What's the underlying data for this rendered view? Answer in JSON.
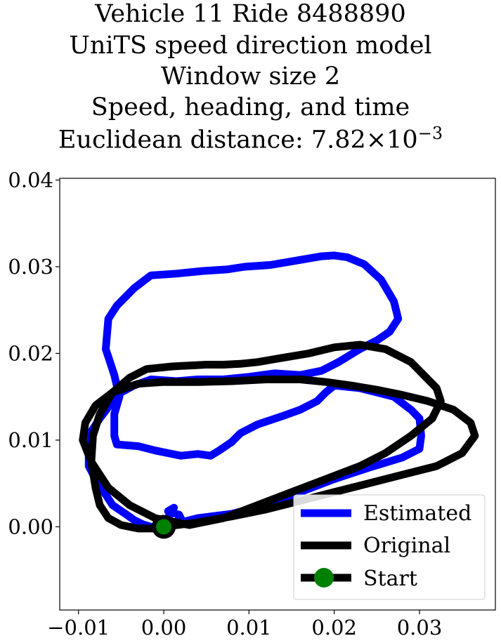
{
  "chart_data": {
    "type": "line",
    "title_lines": [
      "Vehicle 11 Ride 8488890",
      "UniTS speed direction model",
      "Window size 2",
      "Speed, heading, and time"
    ],
    "title_last_prefix": "Euclidean distance: 7.82",
    "title_last_times": "×",
    "title_last_base": "10",
    "title_last_exp": "−3",
    "xlabel": "",
    "ylabel": "",
    "xlim": [
      -0.0122,
      0.0389
    ],
    "ylim": [
      -0.0096,
      0.0402
    ],
    "xticks": [
      -0.01,
      0.0,
      0.01,
      0.02,
      0.03
    ],
    "xtick_labels": [
      "−0.01",
      "0.00",
      "0.01",
      "0.02",
      "0.03"
    ],
    "yticks": [
      0.0,
      0.01,
      0.02,
      0.03,
      0.04
    ],
    "ytick_labels": [
      "0.00",
      "0.01",
      "0.02",
      "0.03",
      "0.04"
    ],
    "grid": false,
    "legend_placement": "lower-right",
    "series": [
      {
        "name": "Estimated",
        "color": "#0000ff",
        "x": [
          0.0,
          0.004,
          0.008,
          0.012,
          0.016,
          0.02,
          0.024,
          0.028,
          0.03,
          0.0302,
          0.03,
          0.029,
          0.027,
          0.023,
          0.02,
          0.019,
          0.018,
          0.016,
          0.014,
          0.011,
          0.009,
          0.008,
          0.0065,
          0.0055,
          0.004,
          0.002,
          0.0005,
          -0.001,
          -0.003,
          -0.0055,
          -0.0058,
          -0.0058,
          -0.0052,
          -0.0058,
          -0.0068,
          -0.0065,
          -0.0055,
          -0.0035,
          -0.0015,
          0.0015,
          0.0045,
          0.0075,
          0.0095,
          0.0125,
          0.0155,
          0.0185,
          0.02,
          0.0215,
          0.0235,
          0.0255,
          0.027,
          0.0275,
          0.0265,
          0.025,
          0.023,
          0.0205,
          0.0185,
          0.016,
          0.013,
          0.01,
          0.007,
          0.004,
          0.0015,
          -0.0015,
          -0.0035,
          -0.005,
          -0.0065,
          -0.0075,
          -0.0085,
          -0.0088,
          -0.0088,
          -0.008,
          -0.007,
          -0.006,
          -0.0045,
          -0.0035,
          -0.0025,
          -0.0015,
          -0.0005,
          0.0005,
          0.0015,
          0.002,
          0.0018,
          0.0005,
          0.0012,
          0.0005,
          0.0
        ],
        "y": [
          0.0,
          0.001,
          0.0015,
          0.0025,
          0.004,
          0.0055,
          0.0068,
          0.008,
          0.009,
          0.0105,
          0.0125,
          0.0135,
          0.015,
          0.016,
          0.0163,
          0.0155,
          0.0145,
          0.0135,
          0.0128,
          0.0118,
          0.0108,
          0.0098,
          0.0088,
          0.0082,
          0.0084,
          0.0082,
          0.0085,
          0.0088,
          0.0093,
          0.0095,
          0.0105,
          0.013,
          0.015,
          0.0175,
          0.0205,
          0.024,
          0.0255,
          0.0275,
          0.029,
          0.0292,
          0.0295,
          0.0297,
          0.03,
          0.0302,
          0.0307,
          0.0312,
          0.0313,
          0.0311,
          0.0303,
          0.0285,
          0.026,
          0.024,
          0.0225,
          0.0215,
          0.0205,
          0.019,
          0.018,
          0.0175,
          0.0177,
          0.0173,
          0.017,
          0.017,
          0.0168,
          0.017,
          0.0163,
          0.0155,
          0.0138,
          0.0125,
          0.011,
          0.009,
          0.007,
          0.0055,
          0.004,
          0.0025,
          0.0015,
          0.0008,
          0.0003,
          0.0,
          0.0,
          0.0002,
          0.0006,
          0.001,
          0.0014,
          0.0018,
          0.0022,
          0.001,
          0.0
        ]
      },
      {
        "name": "Original",
        "color": "#000000",
        "x": [
          0.0,
          0.004,
          0.008,
          0.012,
          0.016,
          0.02,
          0.024,
          0.028,
          0.032,
          0.035,
          0.0365,
          0.036,
          0.034,
          0.031,
          0.028,
          0.025,
          0.022,
          0.019,
          0.016,
          0.012,
          0.008,
          0.004,
          0.0,
          -0.003,
          -0.006,
          -0.008,
          -0.0092,
          -0.0095,
          -0.0085,
          -0.0065,
          -0.004,
          -0.001,
          0.003,
          0.007,
          0.011,
          0.015,
          0.019,
          0.023,
          0.026,
          0.029,
          0.0315,
          0.0325,
          0.032,
          0.029,
          0.026,
          0.023,
          0.02,
          0.017,
          0.014,
          0.011,
          0.009,
          0.007,
          0.005,
          0.003,
          0.001,
          -0.002,
          -0.004,
          -0.006,
          -0.0075,
          -0.0083,
          -0.0085,
          -0.008,
          -0.0075,
          -0.0065,
          -0.005,
          -0.003,
          -0.001,
          0.0
        ],
        "y": [
          0.0,
          0.0005,
          0.0012,
          0.002,
          0.003,
          0.004,
          0.005,
          0.006,
          0.007,
          0.0085,
          0.0105,
          0.012,
          0.0135,
          0.0145,
          0.0152,
          0.0158,
          0.0163,
          0.0167,
          0.017,
          0.017,
          0.0168,
          0.0167,
          0.0167,
          0.0165,
          0.0155,
          0.014,
          0.012,
          0.01,
          0.0075,
          0.0045,
          0.0025,
          0.001,
          0.0002,
          0.001,
          0.0025,
          0.004,
          0.0055,
          0.007,
          0.0085,
          0.0105,
          0.0125,
          0.0145,
          0.016,
          0.019,
          0.0205,
          0.021,
          0.0207,
          0.02,
          0.0195,
          0.019,
          0.0188,
          0.0187,
          0.0187,
          0.0186,
          0.0185,
          0.0182,
          0.0172,
          0.0155,
          0.013,
          0.0105,
          0.0075,
          0.0045,
          0.0025,
          0.001,
          0.0002,
          -0.0002,
          -0.0002,
          0.0
        ]
      }
    ],
    "start_point": {
      "name": "Start",
      "x": 0.0,
      "y": 0.0,
      "marker_color": "#008000",
      "edge_color": "#000000"
    }
  }
}
